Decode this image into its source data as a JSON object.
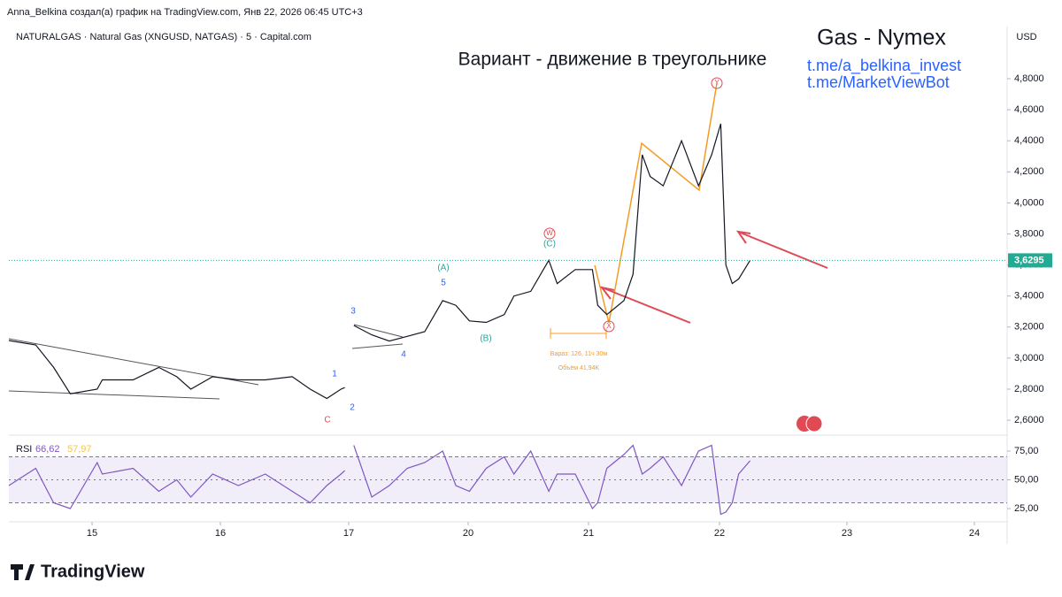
{
  "header": {
    "credit": "Anna_Belkina создал(а) график на TradingView.com, Янв 22, 2026 06:45 UTC+3",
    "symbol": "NATURALGAS · Natural Gas (XNGUSD, NATGAS) · 5 · Capital.com",
    "currency": "USD",
    "brand": "Gas - Nymex",
    "link1": "t.me/a_belkina_invest",
    "link2": "t.me/MarketViewBot"
  },
  "footer": {
    "logo": "TradingView"
  },
  "chart_data": [
    {
      "type": "line",
      "title": "Вариант - движение в треугольнике",
      "color": "#131722",
      "x": [
        14.35,
        14.56,
        14.7,
        14.83,
        15.04,
        15.08,
        15.32,
        15.52,
        15.66,
        15.77,
        15.94,
        16.14,
        16.35,
        16.56,
        16.7,
        16.83,
        16.94,
        16.97,
        null,
        17.13,
        17.58,
        18.02,
        18.47,
        18.91,
        19.36,
        19.69,
        20.01,
        20.15,
        20.3,
        20.38,
        20.52,
        20.67,
        20.74,
        20.89,
        21.03,
        21.07,
        21.14,
        21.27,
        21.34,
        21.41,
        21.47,
        21.57,
        21.71,
        21.84,
        21.94,
        22.01,
        22.05,
        22.1,
        22.15,
        22.24
      ],
      "values": [
        3.113,
        3.085,
        2.94,
        2.77,
        2.8,
        2.86,
        2.86,
        2.94,
        2.88,
        2.8,
        2.88,
        2.86,
        2.86,
        2.88,
        2.8,
        2.74,
        2.8,
        2.81,
        null,
        3.21,
        3.15,
        3.11,
        3.14,
        3.17,
        3.37,
        3.34,
        3.24,
        3.23,
        3.28,
        3.4,
        3.43,
        3.63,
        3.48,
        3.57,
        3.57,
        3.34,
        3.28,
        3.37,
        3.54,
        4.31,
        4.17,
        4.11,
        4.4,
        4.11,
        4.31,
        4.51,
        3.6,
        3.48,
        3.51,
        3.63
      ],
      "xlim": [
        14.35,
        24.26
      ],
      "xticks": [
        15,
        16,
        17,
        20,
        21,
        22,
        23,
        24
      ],
      "ylim": [
        2.515,
        5.136
      ],
      "yticks": [
        {
          "value": 2.6,
          "label": "2,6000"
        },
        {
          "value": 2.8,
          "label": "2,8000"
        },
        {
          "value": 3.0,
          "label": "3,0000"
        },
        {
          "value": 3.2,
          "label": "3,2000"
        },
        {
          "value": 3.4,
          "label": "3,4000"
        },
        {
          "value": 3.6,
          "label": "3,6000"
        },
        {
          "value": 3.8,
          "label": "3,8000"
        },
        {
          "value": 4.0,
          "label": "4,0000"
        },
        {
          "value": 4.2,
          "label": "4,2000"
        },
        {
          "value": 4.4,
          "label": "4,4000"
        },
        {
          "value": 4.6,
          "label": "4,6000"
        },
        {
          "value": 4.8,
          "label": "4,8000"
        }
      ],
      "last_price": {
        "value": 3.6295,
        "label": "3,6295"
      },
      "annotations": [
        "(A)",
        "5",
        "3",
        "4",
        "(B)",
        "(C)",
        "W",
        "1",
        "2",
        "C",
        "X",
        "Y",
        "Вараз: 126, 11ч 30м",
        "Объём 41,94K"
      ]
    },
    {
      "type": "line",
      "title": "RSI",
      "color": "#7e57c2",
      "x": [
        14.35,
        14.56,
        14.7,
        14.83,
        15.04,
        15.08,
        15.32,
        15.52,
        15.66,
        15.77,
        15.94,
        16.14,
        16.35,
        16.56,
        16.7,
        16.83,
        16.94,
        16.97,
        null,
        17.13,
        17.58,
        18.02,
        18.47,
        18.91,
        19.36,
        19.69,
        20.01,
        20.15,
        20.3,
        20.38,
        20.52,
        20.67,
        20.74,
        20.89,
        21.03,
        21.07,
        21.14,
        21.27,
        21.34,
        21.41,
        21.47,
        21.57,
        21.71,
        21.84,
        21.94,
        22.01,
        22.05,
        22.1,
        22.15,
        22.24
      ],
      "values": [
        45,
        60,
        30,
        25,
        65,
        55,
        60,
        40,
        50,
        35,
        55,
        45,
        55,
        40,
        30,
        45,
        55,
        58,
        null,
        80,
        35,
        45,
        60,
        65,
        75,
        45,
        40,
        60,
        70,
        55,
        75,
        40,
        55,
        55,
        25,
        30,
        60,
        72,
        80,
        55,
        60,
        70,
        45,
        75,
        80,
        20,
        22,
        30,
        55,
        66.62
      ],
      "value_label": "66,62",
      "ma_label": "57,97",
      "ylim": [
        13.5,
        86.5
      ],
      "bands": [
        70,
        30
      ],
      "yticks": [
        {
          "value": 75,
          "label": "75,00"
        },
        {
          "value": 50,
          "label": "50,00"
        },
        {
          "value": 25,
          "label": "25,00"
        }
      ]
    }
  ]
}
